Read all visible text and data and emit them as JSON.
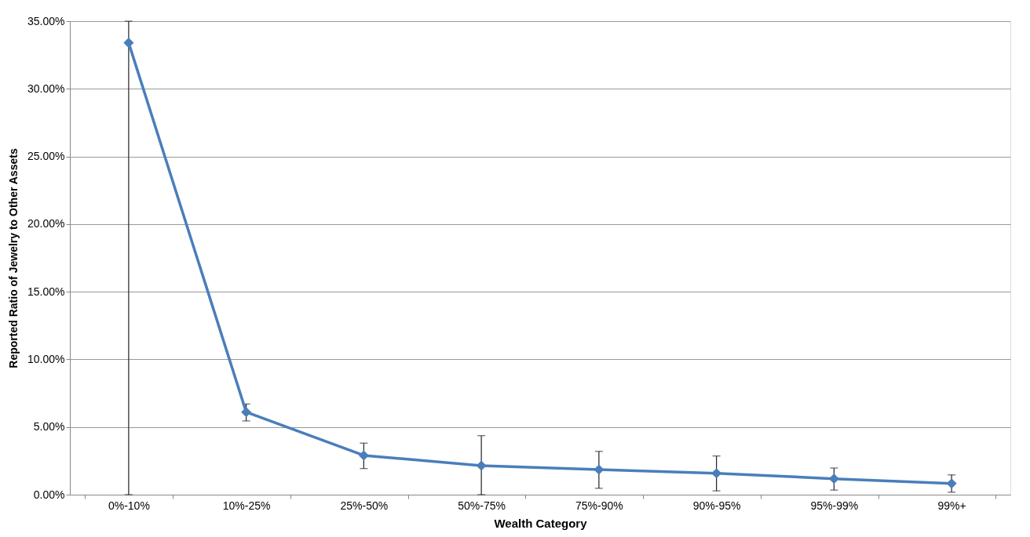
{
  "chart_data": {
    "type": "line",
    "xlabel": "Wealth Category",
    "ylabel": "Reported Ratio of Jewelry to Other Assets",
    "categories": [
      "0%-10%",
      "10%-25%",
      "25%-50%",
      "50%-75%",
      "75%-90%",
      "90%-95%",
      "95%-99%",
      "99%+"
    ],
    "series": [
      {
        "color": "#4a7ebb",
        "values": [
          33.4,
          6.1,
          2.9,
          2.15,
          1.85,
          1.58,
          1.18,
          0.83
        ],
        "errors": [
          [
            0,
            35
          ],
          [
            5.45,
            6.7
          ],
          [
            1.93,
            3.81
          ],
          [
            0,
            4.36
          ],
          [
            0.47,
            3.2
          ],
          [
            0.28,
            2.86
          ],
          [
            0.34,
            1.97
          ],
          [
            0.18,
            1.46
          ]
        ]
      }
    ],
    "ylim": [
      0,
      35
    ],
    "yticks": [
      {
        "value": 0,
        "label": "0.00%"
      },
      {
        "value": 5,
        "label": "5.00%"
      },
      {
        "value": 10,
        "label": "10.00%"
      },
      {
        "value": 15,
        "label": "15.00%"
      },
      {
        "value": 20,
        "label": "20.00%"
      },
      {
        "value": 25,
        "label": "25.00%"
      },
      {
        "value": 30,
        "label": "30.00%"
      },
      {
        "value": 35,
        "label": "35.00%"
      }
    ],
    "grid": "y",
    "marker": "diamond",
    "line_style": "solid"
  }
}
